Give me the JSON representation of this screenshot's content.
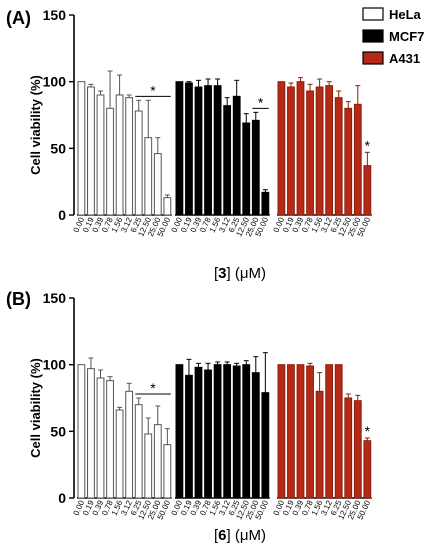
{
  "legend": [
    {
      "name": "HeLa",
      "fill": "#ffffff",
      "stroke": "#000000"
    },
    {
      "name": "MCF7",
      "fill": "#000000",
      "stroke": "#000000"
    },
    {
      "name": "A431",
      "fill": "#b52a16",
      "stroke": "#000000"
    }
  ],
  "colors": {
    "HeLa": "#ffffff",
    "MCF7": "#000000",
    "A431": "#b52a16"
  },
  "chart_data": [
    {
      "type": "bar",
      "panel_label": "(A)",
      "ylabel": "Cell viability (%)",
      "xlabel_prefix": "[",
      "xlabel_compound": "3",
      "xlabel_suffix": "] (μM)",
      "ylim": [
        0,
        150
      ],
      "yticks": [
        "0",
        "50",
        "100",
        "150"
      ],
      "categories": [
        "0.00",
        "0.19",
        "0.39",
        "0.78",
        "1.56",
        "3.12",
        "6.25",
        "12.50",
        "25.00",
        "50.00"
      ],
      "series": [
        {
          "name": "HeLa",
          "values": [
            100,
            96,
            90,
            80,
            90,
            88,
            78,
            58,
            46,
            13
          ],
          "errors": [
            0,
            2,
            3,
            28,
            15,
            2,
            8,
            28,
            12,
            2
          ]
        },
        {
          "name": "MCF7",
          "values": [
            100,
            99,
            96,
            97,
            97,
            82,
            89,
            69,
            71,
            17
          ],
          "errors": [
            0,
            1,
            5,
            5,
            5,
            6,
            12,
            7,
            6,
            2
          ]
        },
        {
          "name": "A431",
          "values": [
            100,
            96,
            100,
            93,
            96,
            97,
            88,
            80,
            83,
            37
          ],
          "errors": [
            0,
            3,
            3,
            5,
            6,
            3,
            5,
            5,
            14,
            10
          ]
        }
      ],
      "significance": [
        {
          "label": "*",
          "series": "HeLa",
          "span": [
            "6.25",
            "50.00"
          ]
        },
        {
          "label": "*",
          "series": "MCF7",
          "span": [
            "25.00",
            "50.00"
          ]
        },
        {
          "label": "*",
          "series": "A431",
          "span": [
            "50.00",
            "50.00"
          ]
        }
      ]
    },
    {
      "type": "bar",
      "panel_label": "(B)",
      "ylabel": "Cell viability (%)",
      "xlabel_prefix": "[",
      "xlabel_compound": "6",
      "xlabel_suffix": "] (μM)",
      "ylim": [
        0,
        150
      ],
      "yticks": [
        "0",
        "50",
        "100",
        "150"
      ],
      "categories": [
        "0.00",
        "0.19",
        "0.39",
        "0.78",
        "1.56",
        "3.12",
        "6.25",
        "12.50",
        "25.00",
        "50.00"
      ],
      "series": [
        {
          "name": "HeLa",
          "values": [
            100,
            97,
            90,
            88,
            66,
            80,
            70,
            48,
            55,
            40
          ],
          "errors": [
            0,
            8,
            6,
            3,
            2,
            6,
            5,
            12,
            14,
            12
          ]
        },
        {
          "name": "MCF7",
          "values": [
            100,
            92,
            98,
            96,
            100,
            100,
            99,
            100,
            94,
            79
          ],
          "errors": [
            0,
            12,
            3,
            5,
            2,
            2,
            2,
            3,
            12,
            30
          ]
        },
        {
          "name": "A431",
          "values": [
            100,
            100,
            100,
            99,
            80,
            100,
            100,
            75,
            73,
            43
          ],
          "errors": [
            0,
            0,
            0,
            2,
            14,
            0,
            0,
            3,
            4,
            2
          ]
        }
      ],
      "significance": [
        {
          "label": "*",
          "series": "HeLa",
          "span": [
            "6.25",
            "50.00"
          ]
        },
        {
          "label": "*",
          "series": "A431",
          "span": [
            "50.00",
            "50.00"
          ]
        }
      ]
    }
  ]
}
